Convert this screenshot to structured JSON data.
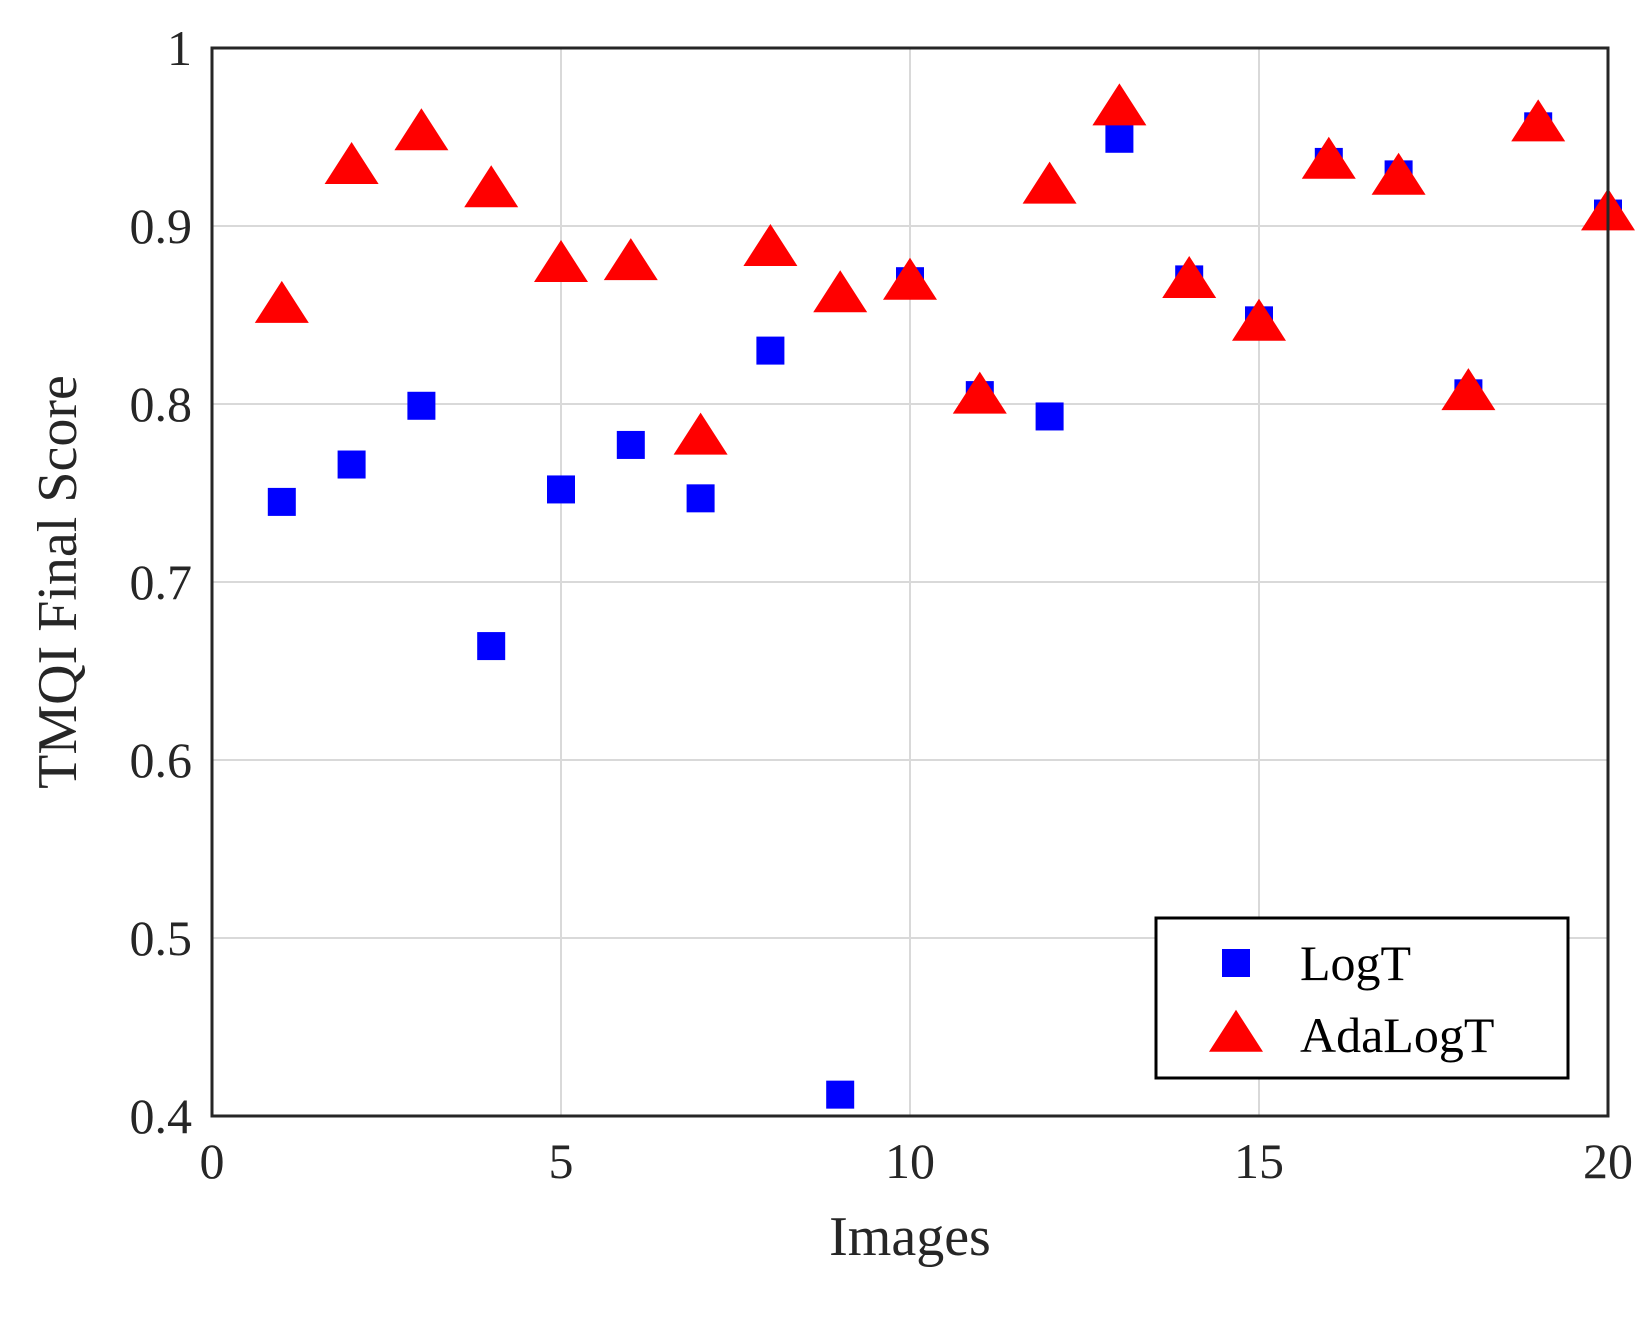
{
  "chart_data": {
    "type": "scatter",
    "title": "",
    "xlabel": "Images",
    "ylabel": "TMQI Final Score",
    "xlim": [
      0,
      20
    ],
    "ylim": [
      0.4,
      1
    ],
    "x_ticks": [
      0,
      5,
      10,
      15,
      20
    ],
    "x_tick_labels": [
      "0",
      "5",
      "10",
      "15",
      "20"
    ],
    "y_ticks": [
      0.4,
      0.5,
      0.6,
      0.7,
      0.8,
      0.9,
      1
    ],
    "y_tick_labels": [
      "0.4",
      "0.5",
      "0.6",
      "0.7",
      "0.8",
      "0.9",
      "1"
    ],
    "grid": true,
    "legend_position": "bottom-right",
    "x": [
      1,
      2,
      3,
      4,
      5,
      6,
      7,
      8,
      9,
      10,
      11,
      12,
      13,
      14,
      15,
      16,
      17,
      18,
      19,
      20
    ],
    "series": [
      {
        "name": "LogT",
        "marker": "square",
        "color": "#0000ff",
        "values": [
          0.745,
          0.766,
          0.799,
          0.664,
          0.752,
          0.777,
          0.747,
          0.83,
          0.412,
          0.869,
          0.805,
          0.793,
          0.949,
          0.87,
          0.847,
          0.936,
          0.929,
          0.806,
          0.956,
          0.907
        ]
      },
      {
        "name": "AdaLogT",
        "marker": "triangle",
        "color": "#ff0000",
        "values": [
          0.855,
          0.933,
          0.952,
          0.92,
          0.878,
          0.879,
          0.781,
          0.887,
          0.861,
          0.868,
          0.804,
          0.922,
          0.966,
          0.869,
          0.845,
          0.936,
          0.927,
          0.806,
          0.957,
          0.907
        ]
      }
    ]
  }
}
